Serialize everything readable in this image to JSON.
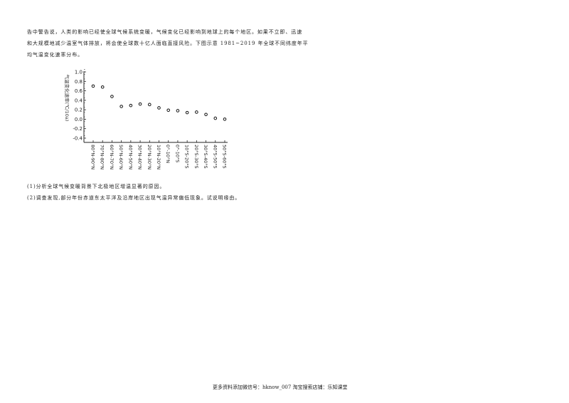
{
  "paragraph": [
    "告中警告说，人类的影响已经使全球气候系统变暖，气候变化已经影响到地球上的每个地区。如果不立即、迅速",
    "和大规模地减少温室气体排放，将会使全球数十亿人面临直接风险。下图示意 1981~2019 年全球不同纬度年平",
    "均气温变化速率分布。"
  ],
  "chart_data": {
    "type": "scatter",
    "title": "",
    "xlabel": "",
    "ylabel": "气温变化速率(℃/10a)",
    "categories": [
      "80°N-90°N",
      "70°N-80°N",
      "60°N-70°N",
      "50°N-60°N",
      "40°N-50°N",
      "30°N-40°N",
      "20°N-30°N",
      "10°N-20°N",
      "0°-10°N",
      "0°-10°S",
      "10°S-20°S",
      "20°S-30°S",
      "30°S-40°S",
      "40°S-50°S",
      "50°S-60°S"
    ],
    "values": [
      0.7,
      0.68,
      0.48,
      0.27,
      0.29,
      0.32,
      0.31,
      0.24,
      0.19,
      0.18,
      0.14,
      0.15,
      0.1,
      0.02,
      0.0
    ],
    "ylim": [
      -0.4,
      1.0
    ],
    "yticks": [
      "1.0",
      "0.8",
      "0.6",
      "0.4",
      "0.2",
      "0.0",
      "-0.2",
      "-0.4"
    ],
    "grid": false,
    "marker": "open-circle"
  },
  "questions": [
    "(1)分析全球气候变暖背景下北极地区增温显著的原因。",
    "(2)调查发现,部分年份赤道东太平洋及沿岸地区出现气温异常偏低现象。试说明缘由。"
  ],
  "footer": "更多资料添加微信号：hknow_007   淘宝搜索店铺：乐知课堂"
}
